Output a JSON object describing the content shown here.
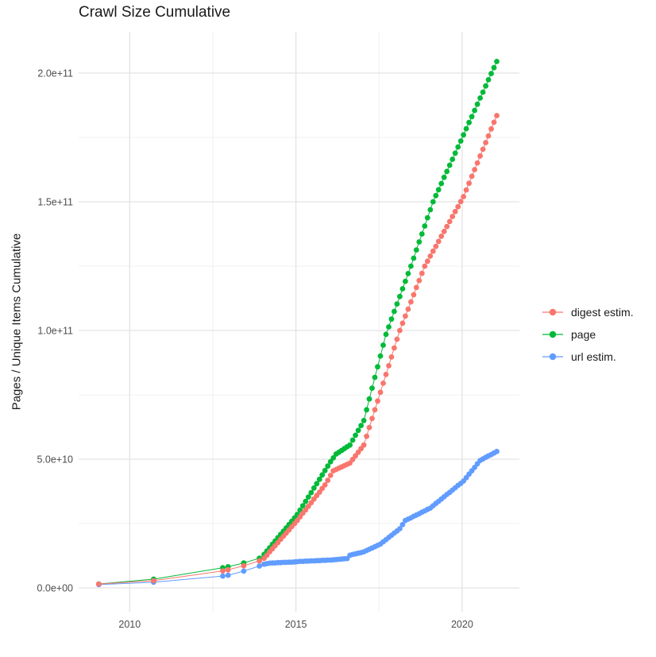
{
  "title": "Crawl Size Cumulative",
  "y_axis_label": "Pages / Unique Items Cumulative",
  "legend": {
    "items": [
      {
        "label": "digest estim.",
        "color": "#F8766D"
      },
      {
        "label": "page",
        "color": "#00BA38"
      },
      {
        "label": "url estim.",
        "color": "#619CFF"
      }
    ]
  },
  "axes": {
    "x_ticks": [
      {
        "value": 2010,
        "label": "2010"
      },
      {
        "value": 2015,
        "label": "2015"
      },
      {
        "value": 2020,
        "label": "2020"
      }
    ],
    "x_minor_ticks": [
      2012.5,
      2017.5
    ],
    "y_ticks": [
      {
        "value": 0,
        "label": "0.0e+00"
      },
      {
        "value": 5,
        "label": "5.0e+10"
      },
      {
        "value": 10,
        "label": "1.0e+11"
      },
      {
        "value": 15,
        "label": "1.5e+11"
      },
      {
        "value": 20,
        "label": "2.0e+11"
      }
    ],
    "y_minor_ticks": [
      2.5,
      7.5,
      12.5,
      17.5
    ],
    "grid_major_color": "#e3e3e3",
    "grid_minor_color": "#f0f0f0"
  },
  "chart_data": {
    "type": "line",
    "title": "Crawl Size Cumulative",
    "xlabel": "",
    "ylabel": "Pages / Unique Items Cumulative",
    "x_unit": "year (decimal)",
    "value_scale": 10000000000.0,
    "x_range": [
      2008.5,
      2021.7
    ],
    "y_range_scaled": [
      0,
      20.5
    ],
    "legend_position": "right",
    "grid": "major+minor",
    "draw_order": [
      1,
      2,
      0
    ],
    "series": [
      {
        "name": "digest estim.",
        "color": "#F8766D",
        "early_points": [
          [
            2009.07,
            0.15
          ],
          [
            2010.72,
            0.28
          ],
          [
            2012.8,
            0.66
          ],
          [
            2012.96,
            0.7
          ],
          [
            2013.43,
            0.86
          ],
          [
            2013.9,
            1.05
          ]
        ],
        "monthly": {
          "x_start": 2014.0417,
          "x_step": 0.083333,
          "values": [
            1.15,
            1.27,
            1.4,
            1.52,
            1.64,
            1.76,
            1.89,
            2.01,
            2.13,
            2.25,
            2.38,
            2.5,
            2.62,
            2.76,
            2.9,
            3.03,
            3.17,
            3.31,
            3.45,
            3.59,
            3.72,
            3.86,
            4.0,
            4.18,
            4.37,
            4.55,
            4.6,
            4.65,
            4.7,
            4.75,
            4.8,
            4.85,
            4.99,
            5.13,
            5.27,
            5.41,
            5.55,
            5.89,
            6.23,
            6.58,
            6.92,
            7.26,
            7.6,
            7.95,
            8.29,
            8.63,
            8.97,
            9.32,
            9.66,
            10.0,
            10.28,
            10.56,
            10.83,
            11.11,
            11.39,
            11.67,
            11.94,
            12.22,
            12.5,
            12.69,
            12.89,
            13.08,
            13.27,
            13.46,
            13.66,
            13.85,
            14.04,
            14.23,
            14.43,
            14.62,
            14.81,
            15.01,
            15.2,
            15.46,
            15.72,
            15.99,
            16.25,
            16.51,
            16.78,
            17.04,
            17.3,
            17.56,
            17.83,
            18.09,
            18.35
          ]
        }
      },
      {
        "name": "page",
        "color": "#00BA38",
        "early_points": [
          [
            2009.07,
            0.15
          ],
          [
            2010.72,
            0.34
          ],
          [
            2012.8,
            0.78
          ],
          [
            2012.96,
            0.82
          ],
          [
            2013.43,
            0.97
          ],
          [
            2013.9,
            1.15
          ]
        ],
        "monthly": {
          "x_start": 2014.0417,
          "x_step": 0.083333,
          "values": [
            1.3,
            1.43,
            1.56,
            1.69,
            1.82,
            1.95,
            2.08,
            2.2,
            2.33,
            2.46,
            2.59,
            2.72,
            2.85,
            3.02,
            3.19,
            3.36,
            3.53,
            3.7,
            3.88,
            4.05,
            4.22,
            4.39,
            4.56,
            4.73,
            4.9,
            5.05,
            5.2,
            5.27,
            5.34,
            5.41,
            5.48,
            5.55,
            5.74,
            5.93,
            6.12,
            6.31,
            6.5,
            6.92,
            7.34,
            7.76,
            8.18,
            8.59,
            9.01,
            9.43,
            9.85,
            10.14,
            10.44,
            10.74,
            11.03,
            11.32,
            11.62,
            11.91,
            12.21,
            12.5,
            12.81,
            13.13,
            13.44,
            13.75,
            14.06,
            14.38,
            14.69,
            15.0,
            15.24,
            15.47,
            15.71,
            15.95,
            16.18,
            16.42,
            16.65,
            16.89,
            17.13,
            17.36,
            17.6,
            17.84,
            18.08,
            18.31,
            18.55,
            18.79,
            19.03,
            19.26,
            19.5,
            19.74,
            19.98,
            20.21,
            20.45
          ]
        }
      },
      {
        "name": "url estim.",
        "color": "#619CFF",
        "early_points": [
          [
            2009.07,
            0.13
          ],
          [
            2010.72,
            0.22
          ],
          [
            2012.8,
            0.46
          ],
          [
            2012.96,
            0.49
          ],
          [
            2013.43,
            0.65
          ],
          [
            2013.9,
            0.85
          ]
        ],
        "monthly": {
          "x_start": 2014.0417,
          "x_step": 0.083333,
          "values": [
            0.92,
            0.94,
            0.96,
            0.97,
            0.97,
            0.98,
            0.98,
            0.99,
            0.99,
            1.0,
            1.0,
            1.01,
            1.02,
            1.03,
            1.03,
            1.04,
            1.04,
            1.05,
            1.05,
            1.06,
            1.06,
            1.07,
            1.07,
            1.08,
            1.08,
            1.09,
            1.1,
            1.11,
            1.12,
            1.13,
            1.14,
            1.27,
            1.3,
            1.32,
            1.35,
            1.37,
            1.4,
            1.45,
            1.5,
            1.55,
            1.6,
            1.65,
            1.7,
            1.79,
            1.87,
            1.96,
            2.04,
            2.13,
            2.21,
            2.3,
            2.46,
            2.62,
            2.67,
            2.72,
            2.78,
            2.83,
            2.88,
            2.94,
            2.99,
            3.05,
            3.1,
            3.19,
            3.28,
            3.36,
            3.45,
            3.54,
            3.63,
            3.71,
            3.8,
            3.89,
            3.98,
            4.06,
            4.15,
            4.28,
            4.42,
            4.55,
            4.68,
            4.82,
            4.95,
            5.01,
            5.07,
            5.13,
            5.18,
            5.24,
            5.3
          ]
        }
      }
    ]
  }
}
